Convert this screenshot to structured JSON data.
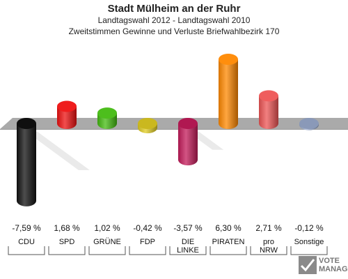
{
  "header": {
    "title": "Stadt Mülheim an der Ruhr",
    "subtitle1": "Landtagswahl 2012 - Landtagswahl 2010",
    "subtitle2": "Zweitstimmen Gewinne und Verluste Briefwahlbezirk 170"
  },
  "logo": {
    "line1": "VOTE",
    "line2": "MANAGER",
    "icon": "check-cross-icon"
  },
  "colors": {
    "background": "#ffffff",
    "floor": "#aaaaaa",
    "floor_shadow": "#d9d9d9"
  },
  "chart_data": {
    "type": "bar",
    "title": "Stadt Mülheim an der Ruhr",
    "subtitle": "Zweitstimmen Gewinne und Verluste Briefwahlbezirk 170",
    "categories": [
      "CDU",
      "SPD",
      "GRÜNE",
      "FDP",
      "DIE LINKE",
      "PIRATEN",
      "pro NRW",
      "Sonstige"
    ],
    "category_labels": [
      [
        "CDU"
      ],
      [
        "SPD"
      ],
      [
        "GRÜNE"
      ],
      [
        "FDP"
      ],
      [
        "DIE",
        "LINKE"
      ],
      [
        "PIRATEN"
      ],
      [
        "pro",
        "NRW"
      ],
      [
        "Sonstige"
      ]
    ],
    "values": [
      -7.59,
      1.68,
      1.02,
      -0.42,
      -3.57,
      6.3,
      2.71,
      -0.12
    ],
    "value_labels": [
      "-7,59 %",
      "1,68 %",
      "1,02 %",
      "-0,42 %",
      "-3,57 %",
      "6,30 %",
      "2,71 %",
      "-0,12 %"
    ],
    "colors": [
      "#111111",
      "#ee1111",
      "#44bb11",
      "#e0cc22",
      "#c41b5a",
      "#ff8800",
      "#ee5555",
      "#99aacc"
    ],
    "ylim": [
      -7.59,
      6.3
    ],
    "grid": false,
    "legend": "none"
  }
}
